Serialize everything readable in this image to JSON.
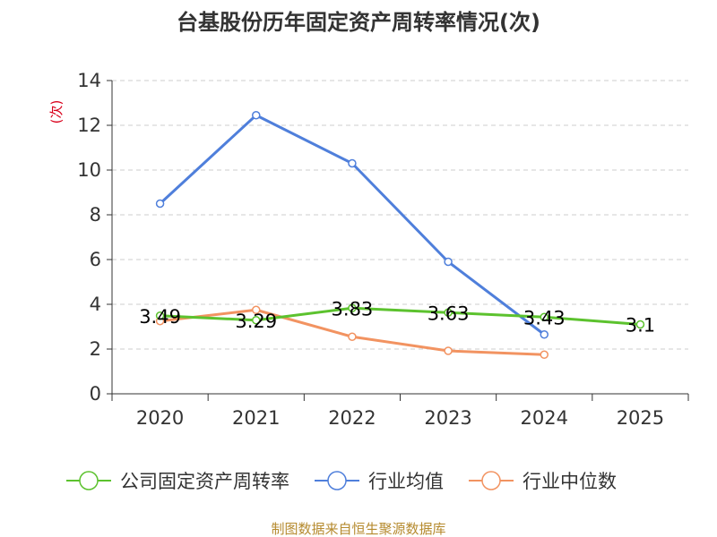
{
  "chart_data": {
    "type": "line",
    "title": "台基股份历年固定资产周转率情况(次)",
    "ylabel": "(次)",
    "xlabel": "",
    "categories": [
      "2020",
      "2021",
      "2022",
      "2023",
      "2024",
      "2025"
    ],
    "ylim": [
      0,
      14
    ],
    "yticks": [
      0,
      2,
      4,
      6,
      8,
      10,
      12,
      14
    ],
    "grid": true,
    "legend_position": "bottom",
    "series": [
      {
        "name": "公司固定资产周转率",
        "color": "#5cc22e",
        "values": [
          3.49,
          3.29,
          3.83,
          3.63,
          3.43,
          3.1
        ],
        "labels": [
          "3.49",
          "3.29",
          "3.83",
          "3.63",
          "3.43",
          "3.1"
        ]
      },
      {
        "name": "行业均值",
        "color": "#4f7fdb",
        "values": [
          8.5,
          12.45,
          10.3,
          5.9,
          2.65,
          null
        ]
      },
      {
        "name": "行业中位数",
        "color": "#f29361",
        "values": [
          3.25,
          3.75,
          2.55,
          1.92,
          1.75,
          null
        ]
      }
    ]
  },
  "source": "制图数据来自恒生聚源数据库"
}
